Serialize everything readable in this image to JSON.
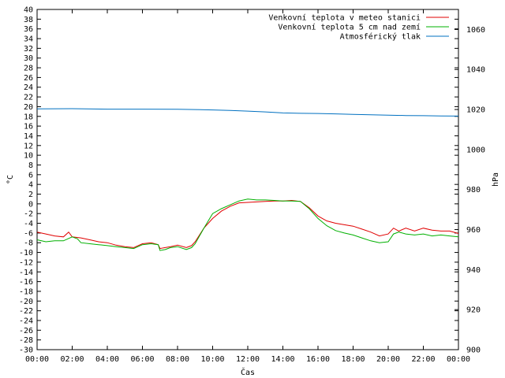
{
  "chart_data": {
    "type": "line",
    "xlabel": "Čas",
    "ylabel_left": "°C",
    "ylabel_right": "hPa",
    "x_ticks": [
      "00:00",
      "02:00",
      "04:00",
      "06:00",
      "08:00",
      "10:00",
      "12:00",
      "14:00",
      "16:00",
      "18:00",
      "20:00",
      "22:00",
      "00:00"
    ],
    "x_range_hours": [
      0,
      24
    ],
    "ylim_left": [
      -30,
      40
    ],
    "ytick_step_left": 2,
    "ylim_right": [
      900,
      1070
    ],
    "ytick_step_right": 20,
    "grid": false,
    "legend_position": "top-right",
    "series": [
      {
        "name": "Venkovní teplota v meteo stanici",
        "axis": "left",
        "color": "#e00000",
        "x": [
          0,
          0.5,
          1,
          1.5,
          1.8,
          2,
          2.5,
          3,
          3.5,
          4,
          4.5,
          5,
          5.5,
          6,
          6.5,
          6.9,
          7,
          7.3,
          7.6,
          8,
          8.5,
          8.8,
          9,
          9.5,
          10,
          10.5,
          11,
          11.5,
          12,
          12.5,
          13,
          13.5,
          14,
          14.5,
          15,
          15.5,
          16,
          16.5,
          17,
          17.5,
          18,
          18.5,
          19,
          19.5,
          20,
          20.3,
          20.6,
          21,
          21.5,
          22,
          22.5,
          23,
          23.5,
          24
        ],
        "y": [
          -5.8,
          -6.2,
          -6.6,
          -6.8,
          -5.8,
          -6.8,
          -7.0,
          -7.4,
          -7.8,
          -8.0,
          -8.5,
          -8.8,
          -9.0,
          -8.2,
          -8.0,
          -8.4,
          -9.2,
          -9.0,
          -8.8,
          -8.5,
          -9.0,
          -8.6,
          -7.8,
          -5.0,
          -3.0,
          -1.5,
          -0.5,
          0.2,
          0.3,
          0.4,
          0.5,
          0.6,
          0.6,
          0.7,
          0.5,
          -0.8,
          -2.5,
          -3.5,
          -4.0,
          -4.3,
          -4.6,
          -5.2,
          -5.8,
          -6.6,
          -6.2,
          -5.0,
          -5.6,
          -5.0,
          -5.6,
          -5.0,
          -5.4,
          -5.6,
          -5.6,
          -6.1
        ]
      },
      {
        "name": "Venkovní teplota 5 cm nad zemí",
        "axis": "left",
        "color": "#00b000",
        "x": [
          0,
          0.5,
          1,
          1.5,
          2,
          2.3,
          2.5,
          3,
          3.5,
          4,
          4.5,
          5,
          5.5,
          6,
          6.5,
          6.9,
          7,
          7.3,
          7.6,
          8,
          8.5,
          8.8,
          9,
          9.5,
          10,
          10.5,
          11,
          11.5,
          12,
          12.5,
          13,
          13.5,
          14,
          14.5,
          15,
          15.5,
          16,
          16.5,
          17,
          17.5,
          18,
          18.5,
          19,
          19.5,
          20,
          20.3,
          20.6,
          21,
          21.5,
          22,
          22.5,
          23,
          23.5,
          24
        ],
        "y": [
          -7.4,
          -7.8,
          -7.6,
          -7.6,
          -6.8,
          -7.2,
          -8.0,
          -8.2,
          -8.4,
          -8.6,
          -8.8,
          -9.0,
          -9.2,
          -8.4,
          -8.2,
          -8.4,
          -9.6,
          -9.4,
          -9.0,
          -8.8,
          -9.4,
          -9.0,
          -8.2,
          -5.0,
          -2.0,
          -1.0,
          -0.2,
          0.6,
          1.0,
          0.8,
          0.8,
          0.7,
          0.6,
          0.6,
          0.5,
          -1.0,
          -3.0,
          -4.5,
          -5.5,
          -6.0,
          -6.4,
          -7.0,
          -7.6,
          -8.0,
          -7.8,
          -6.2,
          -5.8,
          -6.2,
          -6.4,
          -6.2,
          -6.6,
          -6.4,
          -6.6,
          -6.8
        ]
      },
      {
        "name": "Atmosférický tlak",
        "axis": "right",
        "color": "#0070c0",
        "x": [
          0,
          2,
          4,
          6,
          8,
          9,
          10,
          11,
          12,
          13,
          14,
          15,
          16,
          17,
          18,
          19,
          20,
          21,
          22,
          23,
          24
        ],
        "y": [
          1020.3,
          1020.4,
          1020.2,
          1020.2,
          1020.1,
          1020.0,
          1019.8,
          1019.5,
          1019.2,
          1018.8,
          1018.3,
          1018.1,
          1018.0,
          1017.8,
          1017.6,
          1017.4,
          1017.2,
          1017.0,
          1016.9,
          1016.8,
          1016.7
        ]
      }
    ]
  }
}
